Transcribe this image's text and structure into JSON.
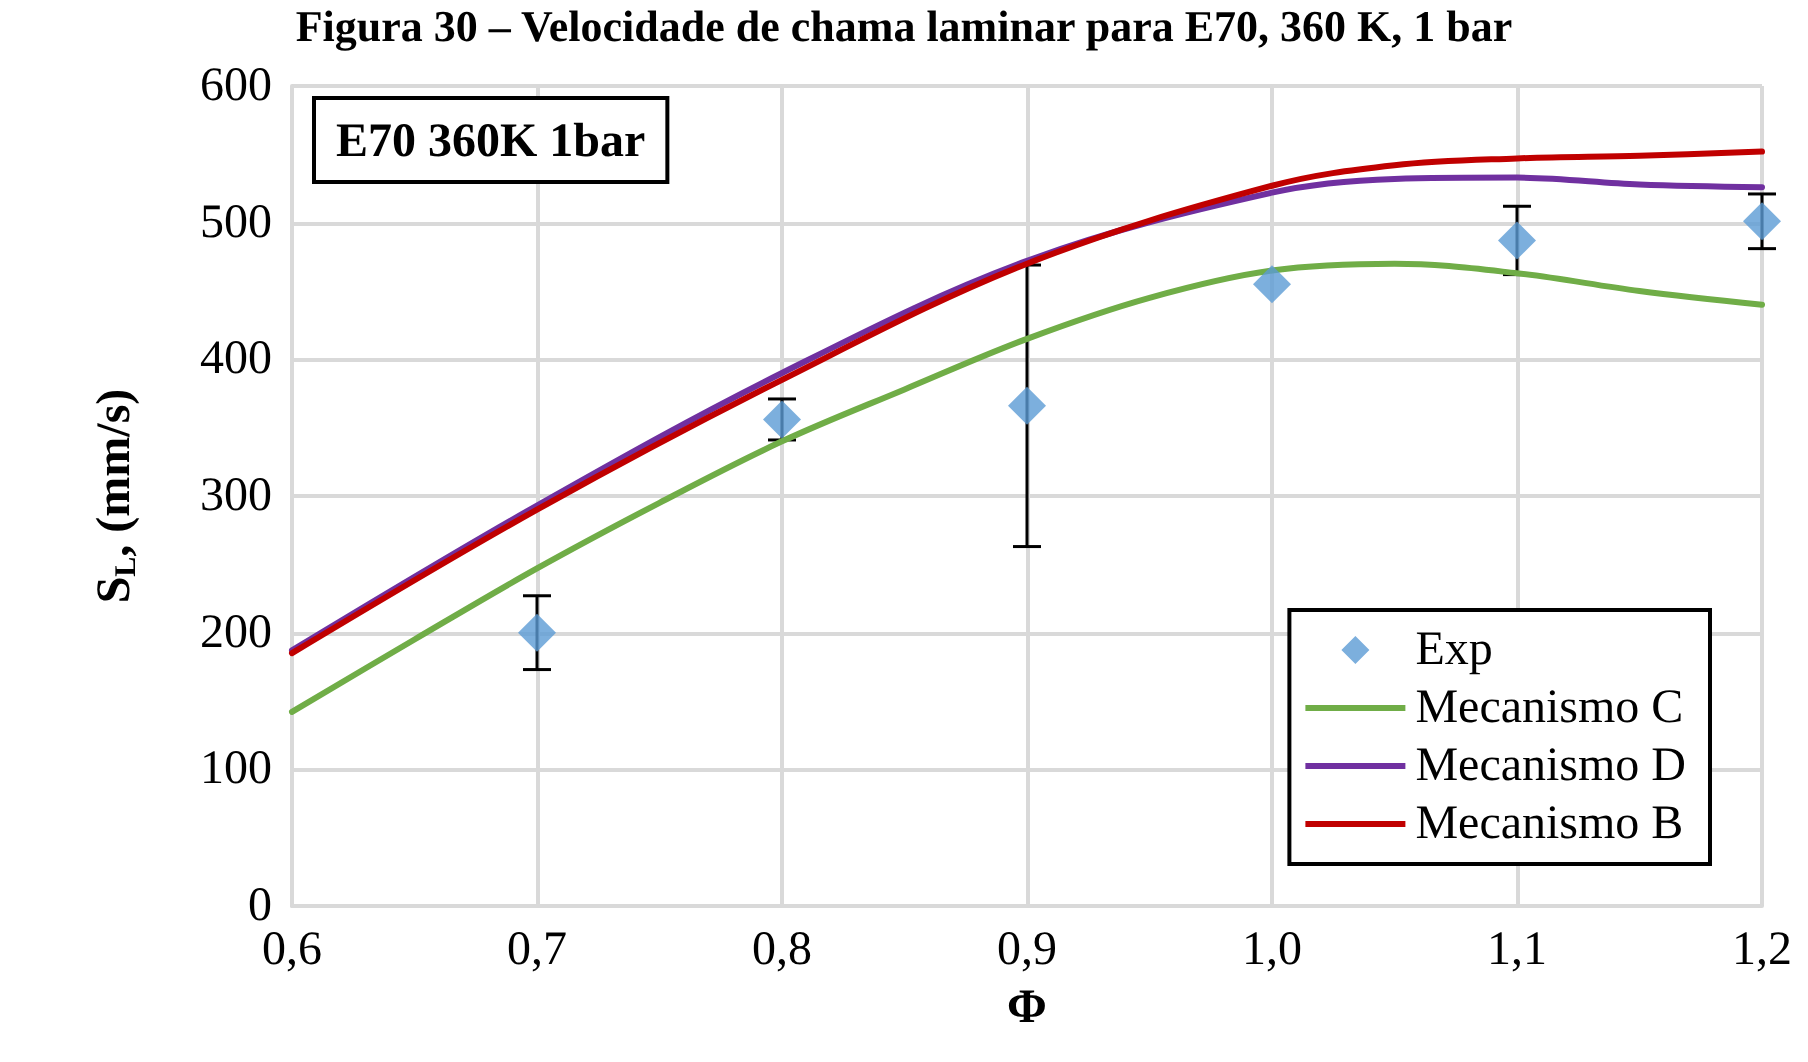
{
  "chart_data": {
    "type": "line",
    "title": "Figura 30 – Velocidade de chama laminar para E70, 360 K, 1 bar",
    "xlabel": "Φ",
    "ylabel": "S$_{L}$, (mm/s)",
    "annotations": [
      "E70 360K 1bar"
    ],
    "xlim": [
      0.6,
      1.2
    ],
    "xticks": [
      {
        "value": 0.6,
        "label": "0,6"
      },
      {
        "value": 0.7,
        "label": "0,7"
      },
      {
        "value": 0.8,
        "label": "0,8"
      },
      {
        "value": 0.9,
        "label": "0,9"
      },
      {
        "value": 1.0,
        "label": "1,0"
      },
      {
        "value": 1.1,
        "label": "1,1"
      },
      {
        "value": 1.2,
        "label": "1,2"
      }
    ],
    "ylim": [
      0,
      600
    ],
    "yticks": [
      0,
      100,
      200,
      300,
      400,
      500,
      600
    ],
    "grid": true,
    "legend": "bottom right",
    "series": [
      {
        "name": "Exp",
        "type": "scatter",
        "marker": "diamond",
        "color": "#5b9bd5",
        "x": [
          0.7,
          0.8,
          0.9,
          1.0,
          1.1,
          1.2
        ],
        "values": [
          200,
          356,
          366,
          455,
          487,
          501
        ],
        "errors": [
          27,
          15,
          103,
          null,
          25,
          20
        ]
      },
      {
        "name": "Mecanismo C",
        "color": "#70ad47",
        "x": [
          0.6,
          0.65,
          0.7,
          0.75,
          0.8,
          0.85,
          0.9,
          0.95,
          1.0,
          1.05,
          1.1,
          1.15,
          1.2
        ],
        "values": [
          142,
          195,
          247,
          295,
          340,
          378,
          415,
          445,
          465,
          470,
          463,
          450,
          440
        ]
      },
      {
        "name": "Mecanismo D",
        "color": "#7030a0",
        "x": [
          0.6,
          0.7,
          0.8,
          0.9,
          1.0,
          1.05,
          1.1,
          1.15,
          1.2
        ],
        "values": [
          187,
          293,
          390,
          472,
          522,
          532,
          533,
          528,
          526
        ]
      },
      {
        "name": "Mecanismo B",
        "color": "#c00000",
        "x": [
          0.6,
          0.7,
          0.8,
          0.9,
          1.0,
          1.05,
          1.1,
          1.15,
          1.2
        ],
        "values": [
          185,
          290,
          385,
          470,
          527,
          542,
          547,
          549,
          552
        ]
      }
    ]
  }
}
